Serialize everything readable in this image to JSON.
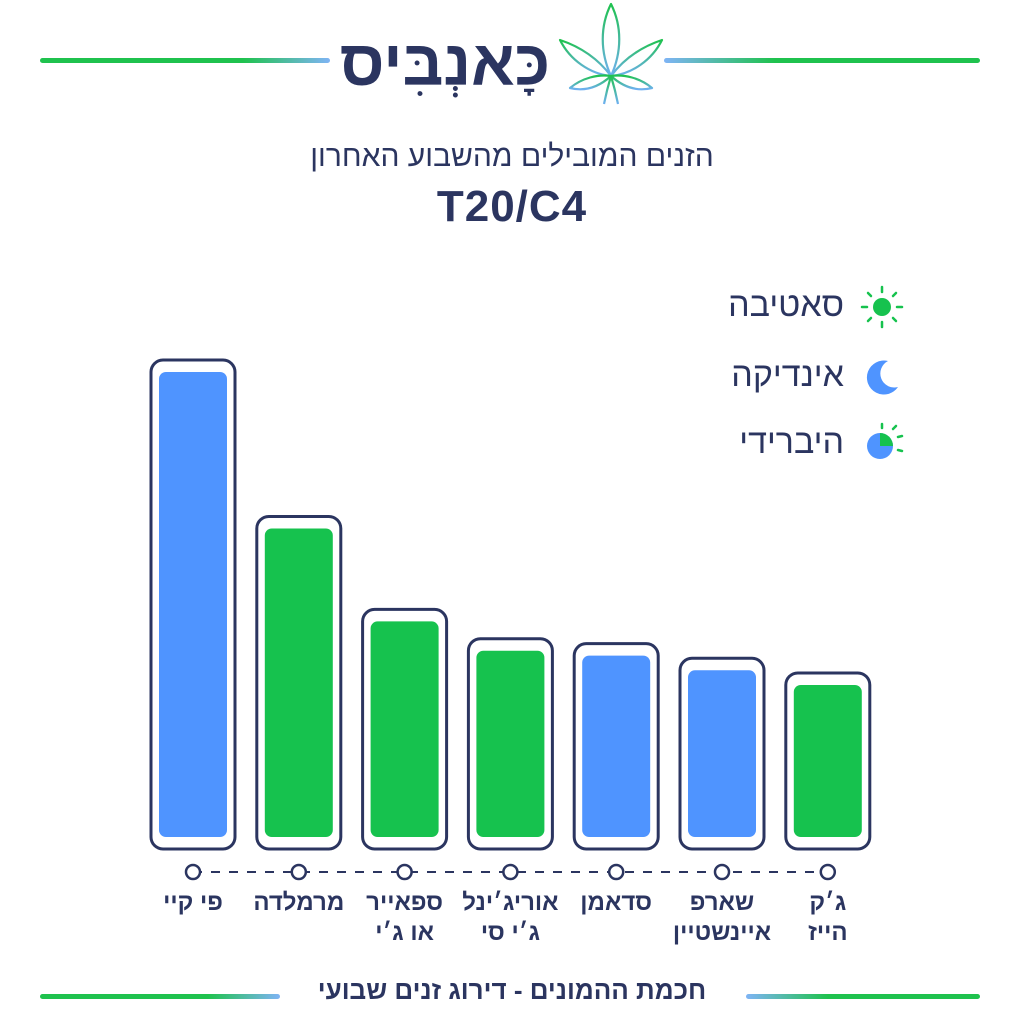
{
  "brand": {
    "name": "כָּאנְבִּיס"
  },
  "header": {
    "subtitle": "הזנים המובילים מהשבוע האחרון",
    "title": "T20/C4"
  },
  "legend": [
    {
      "label": "סאטיבה",
      "icon": "sun-icon",
      "color": "#16c24e"
    },
    {
      "label": "אינדיקה",
      "icon": "moon-icon",
      "color": "#4f94ff"
    },
    {
      "label": "היברידי",
      "icon": "half-sun-moon-icon",
      "color": "#16c24e"
    }
  ],
  "colors": {
    "sativa": "#16c24e",
    "indica": "#4f94ff",
    "outline": "#2b3560",
    "rule_green": "#1fc24e",
    "rule_blue": "#7fb4f5"
  },
  "chart_data": {
    "type": "bar",
    "title": "T20/C4",
    "categories": [
      "פי קיי",
      "מרמלדה",
      "ספאייר\nאו ג׳י",
      "אוריג׳ינל\nג׳י סי",
      "סדאמן",
      "שארפ\nאיינשטיין",
      "ג׳ק\nהייז"
    ],
    "values": [
      100,
      68,
      49,
      43,
      42,
      39,
      36
    ],
    "strain_types": [
      "indica",
      "sativa",
      "sativa",
      "sativa",
      "indica",
      "indica",
      "sativa"
    ],
    "ylim": [
      0,
      100
    ],
    "grid": false,
    "legend_position": "top-right",
    "xlabel": "",
    "ylabel": ""
  },
  "footer": {
    "text": "חכמת ההמונים - דירוג זנים שבועי"
  }
}
